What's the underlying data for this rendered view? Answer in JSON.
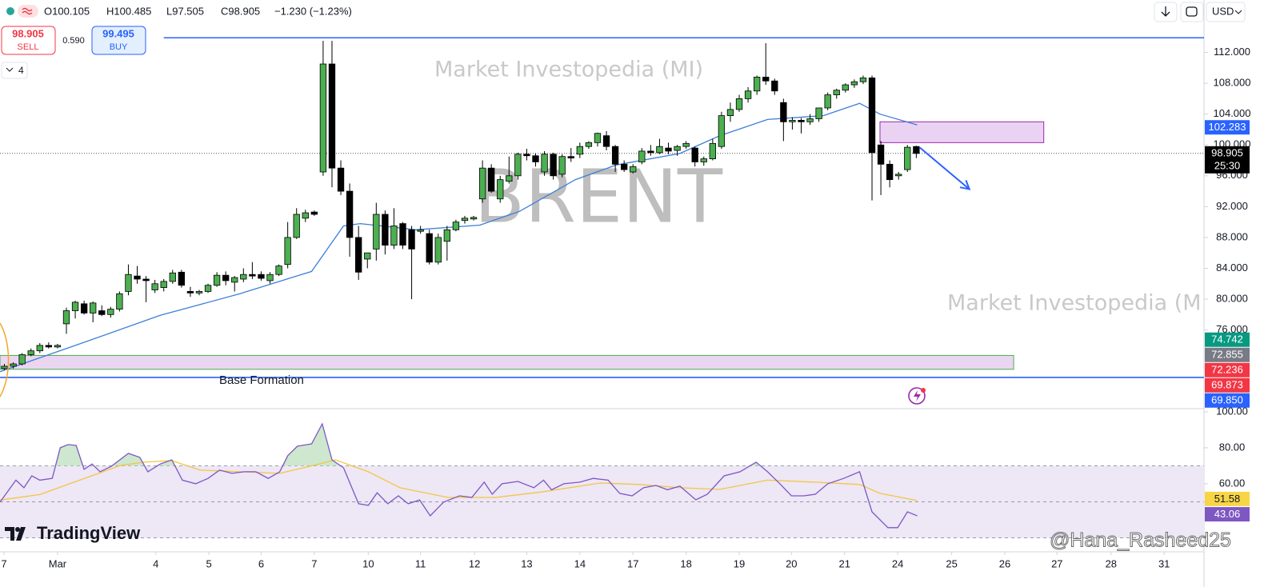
{
  "header": {
    "ohlc": [
      "O100.105",
      "H100.485",
      "L97.505",
      "C98.905",
      "−1.230 (−1.23%)"
    ],
    "currency": "USD"
  },
  "trade": {
    "sell_price": "98.905",
    "sell": "SELL",
    "spread": "0.590",
    "buy_price": "99.495",
    "buy": "BUY",
    "indicators": "4"
  },
  "watermarks": {
    "brand": "Market Investopedia (MI)",
    "brand_cut": "Market Investopedia (M",
    "symbol": "BRENT"
  },
  "annotation": "Base Formation",
  "logo": "TradingView",
  "credit": "@Hana_Rasheed25",
  "chart_data": [
    {
      "type": "candlestick",
      "up_color": "#4caf50",
      "down_color": "#000000",
      "xlim": [
        0,
        136
      ],
      "xticks": [
        {
          "value": 0.45,
          "label": "7"
        },
        {
          "value": 6.5,
          "label": "Mar"
        },
        {
          "value": 17.6,
          "label": "4"
        },
        {
          "value": 23.6,
          "label": "5"
        },
        {
          "value": 29.5,
          "label": "6"
        },
        {
          "value": 35.5,
          "label": "7"
        },
        {
          "value": 41.6,
          "label": "10"
        },
        {
          "value": 47.5,
          "label": "11"
        },
        {
          "value": 53.6,
          "label": "12"
        },
        {
          "value": 59.5,
          "label": "13"
        },
        {
          "value": 65.5,
          "label": "14"
        },
        {
          "value": 71.5,
          "label": "17"
        },
        {
          "value": 77.5,
          "label": "18"
        },
        {
          "value": 83.5,
          "label": "19"
        },
        {
          "value": 89.4,
          "label": "20"
        },
        {
          "value": 95.4,
          "label": "21"
        },
        {
          "value": 101.4,
          "label": "24"
        },
        {
          "value": 107.5,
          "label": "25"
        },
        {
          "value": 113.5,
          "label": "26"
        },
        {
          "value": 119.4,
          "label": "27"
        },
        {
          "value": 125.5,
          "label": "28"
        },
        {
          "value": 131.5,
          "label": "31"
        }
      ],
      "ylim": [
        65.9,
        118.8
      ],
      "yticks": [
        {
          "value": 112,
          "label": "112.000"
        },
        {
          "value": 108,
          "label": "108.000"
        },
        {
          "value": 104,
          "label": "104.000"
        },
        {
          "value": 100,
          "label": "100.000"
        },
        {
          "value": 96,
          "label": "96.000"
        },
        {
          "value": 92,
          "label": "92.000"
        },
        {
          "value": 88,
          "label": "88.000"
        },
        {
          "value": 84,
          "label": "84.000"
        },
        {
          "value": 80,
          "label": "80.000"
        },
        {
          "value": 76,
          "label": "76.000"
        }
      ],
      "open": [
        71.0,
        71.3,
        71.6,
        72.8,
        73.3,
        74.0,
        73.8,
        76.8,
        78.5,
        79.4,
        78.2,
        78.5,
        78.0,
        78.7,
        81.0,
        83.0,
        82.6,
        81.2,
        81.5,
        82.3,
        83.5,
        81.0,
        80.8,
        81.0,
        81.8,
        83.1,
        82.2,
        82.6,
        83.2,
        83.2,
        82.4,
        83.2,
        84.5,
        88.0,
        90.5,
        91.3,
        96.5,
        110.5,
        97.0,
        94.0,
        88.0,
        85.2,
        86.5,
        91.0,
        87.0,
        89.8,
        89.0,
        88.8,
        88.5,
        84.8,
        87.5,
        89.0,
        90.2,
        90.4,
        93.0,
        97.0,
        93.0,
        95.3,
        96.0,
        98.8,
        98.6,
        96.5,
        98.8,
        96.2,
        98.5,
        98.8,
        99.8,
        100.3,
        101.2,
        99.8,
        97.5,
        96.5,
        97.8,
        99.2,
        99.0,
        99.6,
        99.3,
        99.8,
        99.6,
        97.8,
        98.2,
        99.8,
        103.8,
        104.6,
        106.0,
        107.0,
        108.8,
        108.3,
        105.5,
        103.0,
        103.2,
        103.0,
        103.4,
        104.8,
        106.5,
        107.1,
        107.8,
        108.2,
        108.7,
        100.0,
        97.5,
        96.0,
        96.8,
        99.8
      ],
      "high": [
        71.6,
        71.8,
        73.0,
        73.6,
        74.3,
        74.4,
        74.2,
        78.9,
        79.8,
        79.8,
        79.7,
        79.2,
        79.0,
        81.0,
        84.5,
        84.3,
        83.0,
        82.5,
        82.6,
        83.8,
        83.8,
        81.6,
        81.2,
        82.0,
        83.5,
        83.6,
        83.0,
        84.0,
        84.8,
        83.6,
        83.5,
        84.5,
        90.0,
        91.8,
        91.6,
        91.5,
        113.5,
        113.5,
        98.0,
        95.0,
        89.5,
        86.0,
        92.5,
        91.5,
        91.8,
        90.0,
        89.5,
        89.5,
        89.0,
        88.5,
        89.5,
        90.3,
        90.8,
        90.8,
        98.0,
        97.5,
        96.0,
        98.5,
        99.0,
        99.5,
        98.9,
        99.2,
        99.0,
        98.8,
        99.6,
        100.3,
        100.5,
        101.6,
        101.8,
        100.0,
        98.0,
        97.5,
        99.6,
        100.0,
        100.8,
        100.3,
        100.0,
        100.5,
        99.8,
        98.5,
        100.8,
        104.3,
        105.5,
        106.5,
        107.5,
        109.0,
        113.2,
        108.6,
        106.0,
        103.6,
        103.5,
        104.0,
        104.8,
        106.8,
        107.3,
        108.0,
        108.5,
        109.0,
        109.0,
        100.5,
        98.0,
        96.5,
        100.0,
        99.9
      ],
      "low": [
        70.8,
        71.0,
        71.4,
        72.6,
        73.0,
        73.6,
        73.6,
        75.5,
        77.5,
        78.0,
        77.0,
        77.8,
        77.6,
        78.4,
        80.5,
        82.0,
        79.6,
        80.8,
        81.0,
        82.0,
        81.5,
        80.3,
        80.5,
        80.8,
        81.6,
        81.8,
        81.0,
        82.2,
        82.6,
        82.4,
        82.0,
        83.0,
        84.0,
        87.8,
        90.0,
        90.8,
        96.0,
        94.5,
        93.5,
        85.5,
        82.5,
        84.0,
        85.0,
        85.8,
        86.5,
        86.5,
        80.0,
        88.5,
        84.5,
        84.5,
        85.0,
        88.8,
        89.8,
        90.2,
        92.5,
        93.8,
        92.5,
        95.0,
        95.5,
        98.0,
        97.2,
        96.0,
        95.5,
        95.8,
        97.8,
        98.3,
        99.5,
        99.8,
        99.3,
        96.5,
        96.5,
        96.3,
        97.5,
        98.6,
        98.8,
        98.8,
        98.6,
        99.5,
        97.2,
        97.3,
        98.0,
        99.5,
        103.0,
        104.3,
        105.5,
        106.5,
        107.8,
        106.5,
        100.5,
        102.0,
        101.5,
        102.6,
        103.0,
        104.5,
        106.0,
        106.8,
        107.4,
        107.9,
        92.8,
        93.5,
        94.5,
        95.5,
        96.5,
        98.3
      ],
      "close": [
        71.3,
        71.6,
        72.8,
        73.3,
        74.0,
        73.8,
        74.0,
        78.5,
        79.6,
        78.2,
        79.5,
        78.0,
        78.7,
        80.7,
        83.2,
        82.6,
        82.4,
        82.0,
        82.3,
        83.4,
        81.8,
        80.8,
        81.0,
        81.8,
        83.1,
        82.4,
        82.8,
        83.2,
        83.0,
        82.7,
        83.2,
        84.3,
        88.0,
        91.0,
        91.2,
        91.0,
        110.5,
        97.0,
        94.0,
        88.0,
        83.5,
        86.0,
        91.0,
        87.0,
        89.5,
        87.0,
        86.5,
        89.0,
        84.8,
        88.0,
        89.0,
        90.0,
        90.5,
        90.6,
        97.0,
        94.0,
        95.5,
        96.0,
        98.8,
        98.6,
        97.8,
        98.8,
        96.0,
        98.5,
        98.3,
        99.8,
        100.3,
        101.5,
        99.8,
        97.5,
        96.8,
        97.2,
        99.2,
        99.0,
        99.8,
        99.2,
        99.8,
        100.2,
        97.8,
        98.2,
        100.2,
        103.8,
        104.6,
        106.0,
        107.0,
        108.8,
        108.3,
        107.0,
        103.0,
        103.2,
        103.0,
        103.4,
        104.8,
        106.5,
        107.1,
        107.8,
        108.2,
        108.7,
        99.0,
        97.5,
        95.5,
        96.2,
        99.7,
        98.9
      ],
      "overlays": [
        {
          "color": "#3d7fd9",
          "x": [
            0,
            9.0,
            18.1,
            27.1,
            35.2,
            38.8,
            40.7,
            47.0,
            54.2,
            58.7,
            65.0,
            69.6,
            76.8,
            81.3,
            86.7,
            93.0,
            97.1,
            99.4,
            103.6
          ],
          "values": [
            70.6,
            74.2,
            77.9,
            80.7,
            83.6,
            89.5,
            89.8,
            89.0,
            89.6,
            91.4,
            95.5,
            97.4,
            98.9,
            101.2,
            103.3,
            103.8,
            105.4,
            104.0,
            102.6
          ]
        }
      ],
      "hlines": [
        {
          "value": 113.9,
          "from": 18.5,
          "color": "#2962ff"
        },
        {
          "value": 69.85,
          "from": 0,
          "color": "#2962ff"
        }
      ],
      "zones": [
        {
          "x": [
            99.4,
            117.9
          ],
          "y": [
            100.3,
            103.0
          ],
          "fill": "#ead3f2",
          "stroke": "#9c27b0"
        },
        {
          "x": [
            0,
            114.5
          ],
          "y": [
            70.9,
            72.7
          ],
          "fill": "#ead6f0",
          "stroke": "#4caf50"
        }
      ],
      "arrow": {
        "from": [
          103.9,
          99.66
        ],
        "to": [
          109.5,
          94.26
        ],
        "color": "#2962ff"
      },
      "price_labels": [
        {
          "value": 102.283,
          "label": "102.283",
          "color": "#2962ff"
        },
        {
          "value": 98.905,
          "label": "98.905",
          "color": "#000000"
        },
        {
          "value": 74.742,
          "label": "74.742",
          "color": "#089981"
        },
        {
          "value": 72.855,
          "label": "72.855",
          "color": "#787b86"
        },
        {
          "value": 72.236,
          "label": "72.236",
          "color": "#f23645"
        },
        {
          "value": 69.873,
          "label": "69.873",
          "color": "#f23645"
        },
        {
          "value": 69.85,
          "label": "69.850",
          "color": "#2962ff"
        }
      ],
      "countdown": "25:30"
    },
    {
      "type": "line",
      "xlim": [
        0,
        136
      ],
      "ylim": [
        22.2,
        101.3
      ],
      "yticks": [
        {
          "value": 100,
          "label": "100.00"
        },
        {
          "value": 80,
          "label": "80.00"
        },
        {
          "value": 60,
          "label": "60.00"
        }
      ],
      "levels": [
        70,
        50,
        30
      ],
      "band_color": "#ede7f6",
      "overbought_color": "#c8e6c9",
      "series": [
        {
          "color": "#7e57c2",
          "x": [
            0,
            1.8,
            2.7,
            3.6,
            4.5,
            5.9,
            6.8,
            7.7,
            8.6,
            9.5,
            10.4,
            11.3,
            12.6,
            14.5,
            15.8,
            16.7,
            18.1,
            19.4,
            20.6,
            22.1,
            23.5,
            24.8,
            26.2,
            27.6,
            28.9,
            30.3,
            31.6,
            32.5,
            33.6,
            35.2,
            36.4,
            37.5,
            38.8,
            40.5,
            41.6,
            42.6,
            43.8,
            45.0,
            46.1,
            47.4,
            48.6,
            50.1,
            51.9,
            53.3,
            54.7,
            55.6,
            56.7,
            58.5,
            60.3,
            61.4,
            62.3,
            63.7,
            65.5,
            67.0,
            68.7,
            70.0,
            71.4,
            72.7,
            74.1,
            75.4,
            76.8,
            78.6,
            79.9,
            81.8,
            83.6,
            85.4,
            86.7,
            88.1,
            89.4,
            90.8,
            92.1,
            93.5,
            95.3,
            97.1,
            98.5,
            100.3,
            101.4,
            102.5,
            103.6
          ],
          "values": [
            49.8,
            62,
            57.8,
            64.4,
            62,
            63,
            80,
            81.8,
            81.3,
            68,
            71,
            66.7,
            69.8,
            76.9,
            74.7,
            66.7,
            71,
            73.3,
            62,
            60,
            63,
            67.6,
            65.8,
            66.7,
            66.7,
            63,
            66.7,
            75.6,
            80.9,
            82.2,
            93.3,
            73.3,
            68.9,
            48.9,
            48,
            55,
            48.9,
            53.3,
            48.9,
            51,
            42.2,
            49.8,
            53.3,
            52.4,
            60.9,
            54.2,
            60,
            61.3,
            57.8,
            62,
            56.7,
            60,
            60.9,
            63,
            62,
            54.7,
            53.3,
            57.8,
            59.1,
            56.7,
            58.7,
            51.1,
            54.2,
            64.4,
            66.7,
            72,
            66.7,
            60,
            53.3,
            53.3,
            54.2,
            60,
            63,
            66.7,
            44.4,
            35.6,
            35.6,
            44.4,
            42.2
          ]
        },
        {
          "color": "#f5c542",
          "x": [
            0,
            4.5,
            9.0,
            13.6,
            16.3,
            19.4,
            22.6,
            27.1,
            31.6,
            34.3,
            37.9,
            41.6,
            45.2,
            50.6,
            56.0,
            61.4,
            67.8,
            72.3,
            76.8,
            81.3,
            86.7,
            92.1,
            97.1,
            99.4,
            103.6
          ],
          "values": [
            51,
            54,
            62,
            70.2,
            72,
            72.9,
            67.6,
            66.7,
            65.8,
            68.9,
            73.3,
            66.7,
            57.8,
            52.4,
            52.4,
            55.6,
            60.4,
            59.6,
            57.8,
            56.9,
            62,
            60.9,
            59.6,
            54.7,
            50.7
          ]
        }
      ],
      "value_badges": [
        {
          "value": 51.58,
          "label": "51.58",
          "color": "#f7d547",
          "text_color": "#131722"
        },
        {
          "value": 43.06,
          "label": "43.06",
          "color": "#7e57c2",
          "text_color": "#ffffff"
        }
      ]
    }
  ]
}
